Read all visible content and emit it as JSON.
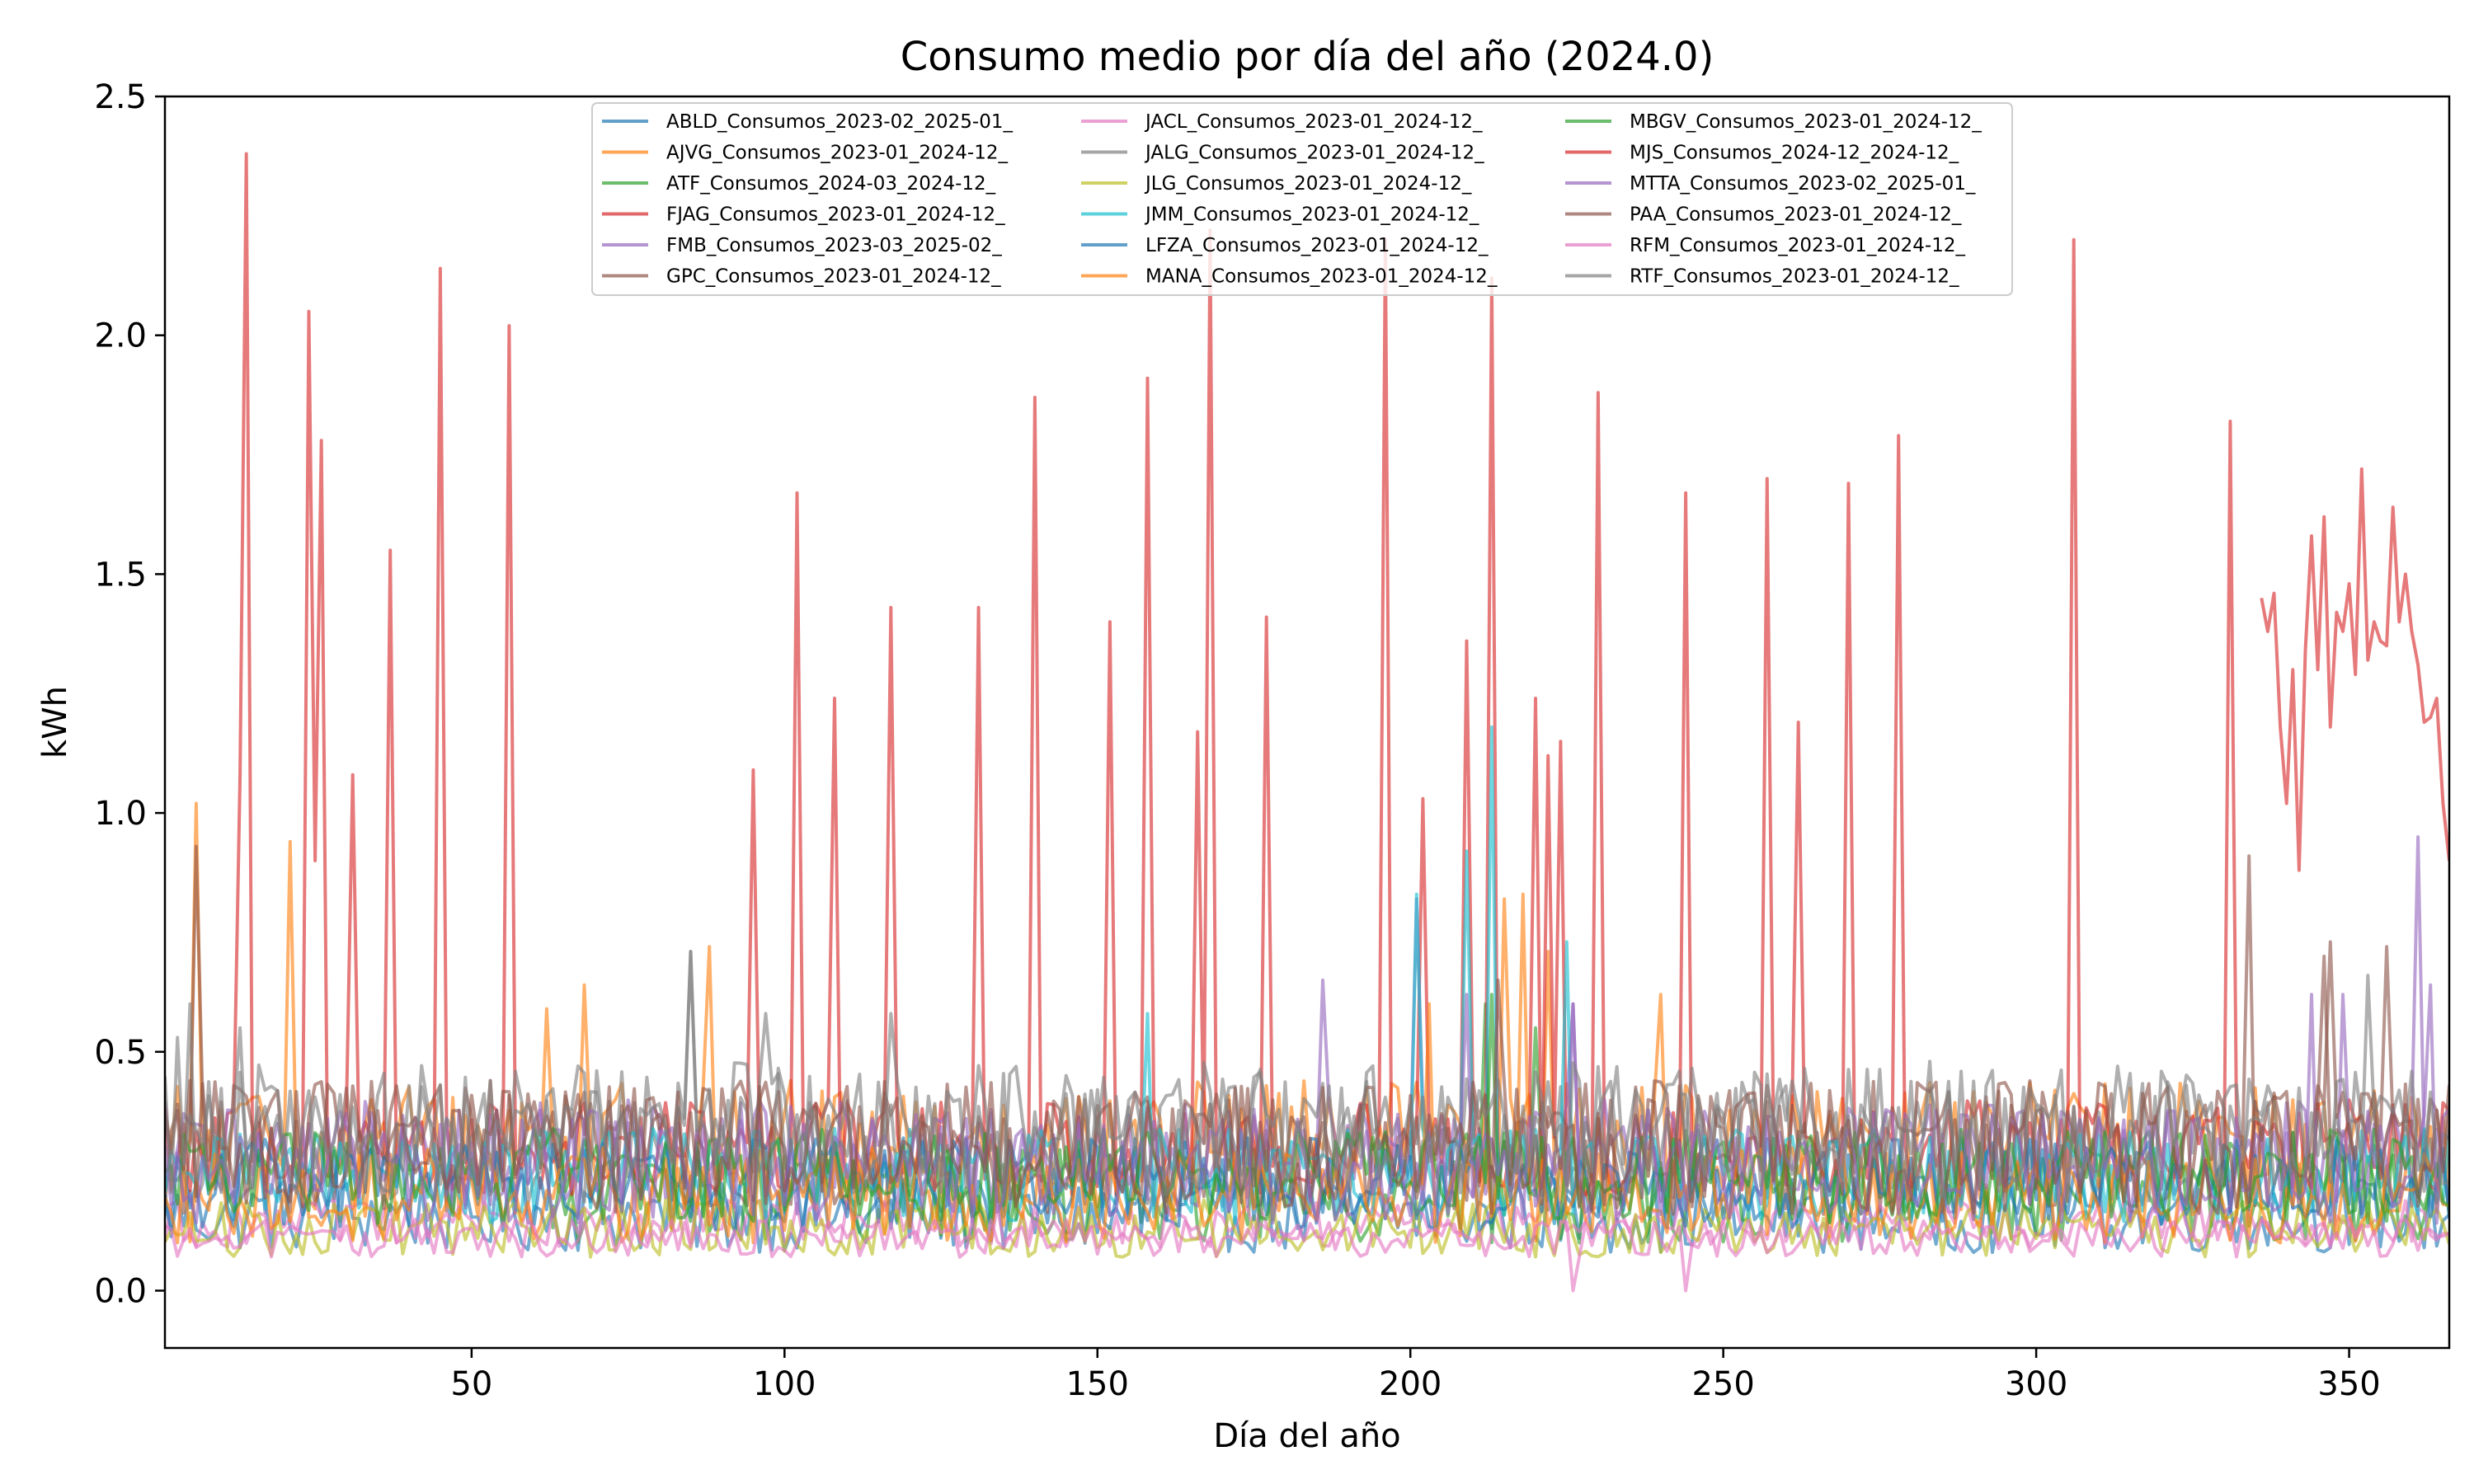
{
  "chart_data": {
    "type": "line",
    "title": "Consumo medio por día del año (2024.0)",
    "xlabel": "Día del año",
    "ylabel": "kWh",
    "xlim": [
      1,
      366
    ],
    "ylim": [
      -0.12,
      2.5
    ],
    "xticks": [
      50,
      100,
      150,
      200,
      250,
      300,
      350
    ],
    "yticks": [
      0.0,
      0.5,
      1.0,
      1.5,
      2.0,
      2.5
    ],
    "ytick_labels": [
      "0.0",
      "0.5",
      "1.0",
      "1.5",
      "2.0",
      "2.5"
    ],
    "grid": false,
    "legend_position": "upper center",
    "legend_columns": 3,
    "series": [
      {
        "name": "ABLD_Consumos_2023-02_2025-01_",
        "color": "#1f77b4",
        "start": 1,
        "end": 366,
        "base": 0.16,
        "amp": 0.08,
        "spikes": []
      },
      {
        "name": "AJVG_Consumos_2023-01_2024-12_",
        "color": "#ff7f0e",
        "start": 1,
        "end": 366,
        "base": 0.3,
        "amp": 0.14,
        "spikes": [
          [
            6,
            1.02
          ],
          [
            21,
            0.94
          ],
          [
            62,
            0.59
          ],
          [
            68,
            0.64
          ],
          [
            88,
            0.72
          ],
          [
            215,
            0.82
          ],
          [
            222,
            0.71
          ],
          [
            240,
            0.62
          ]
        ]
      },
      {
        "name": "ATF_Consumos_2024-03_2024-12_",
        "color": "#2ca02c",
        "start": 61,
        "end": 366,
        "base": 0.2,
        "amp": 0.1,
        "spikes": [
          [
            212,
            0.6
          ],
          [
            220,
            0.55
          ]
        ]
      },
      {
        "name": "FJAG_Consumos_2023-01_2024-12_",
        "color": "#d62728",
        "start": 1,
        "end": 366,
        "base": 0.3,
        "amp": 0.1,
        "spikes": [
          [
            13,
            1.08
          ],
          [
            14,
            2.38
          ],
          [
            24,
            2.05
          ],
          [
            25,
            0.9
          ],
          [
            26,
            1.78
          ],
          [
            31,
            1.08
          ],
          [
            37,
            1.55
          ],
          [
            45,
            2.14
          ],
          [
            56,
            2.02
          ],
          [
            95,
            1.09
          ],
          [
            102,
            1.67
          ],
          [
            108,
            1.24
          ],
          [
            117,
            1.43
          ],
          [
            131,
            1.43
          ],
          [
            140,
            1.87
          ],
          [
            152,
            1.4
          ],
          [
            158,
            1.91
          ],
          [
            166,
            1.17
          ],
          [
            168,
            2.22
          ],
          [
            177,
            1.41
          ],
          [
            196,
            2.2
          ],
          [
            202,
            1.03
          ],
          [
            209,
            1.36
          ],
          [
            213,
            2.12
          ],
          [
            220,
            1.24
          ],
          [
            222,
            1.12
          ],
          [
            224,
            1.15
          ],
          [
            230,
            1.88
          ],
          [
            244,
            1.67
          ],
          [
            257,
            1.7
          ],
          [
            262,
            1.19
          ],
          [
            270,
            1.69
          ],
          [
            278,
            1.79
          ],
          [
            306,
            2.2
          ],
          [
            331,
            1.82
          ]
        ]
      },
      {
        "name": "FMB_Consumos_2023-03_2025-02_",
        "color": "#9467bd",
        "start": 1,
        "end": 366,
        "base": 0.28,
        "amp": 0.12,
        "spikes": [
          [
            186,
            0.65
          ],
          [
            201,
            0.82
          ],
          [
            226,
            0.6
          ],
          [
            349,
            0.62
          ],
          [
            361,
            0.95
          ]
        ]
      },
      {
        "name": "GPC_Consumos_2023-01_2024-12_",
        "color": "#8c564b",
        "start": 1,
        "end": 366,
        "base": 0.3,
        "amp": 0.14,
        "spikes": [
          [
            6,
            0.93
          ],
          [
            334,
            0.91
          ],
          [
            346,
            0.7
          ],
          [
            356,
            0.72
          ]
        ]
      },
      {
        "name": "JACL_Consumos_2023-01_2024-12_",
        "color": "#e377c2",
        "start": 1,
        "end": 366,
        "base": 0.14,
        "amp": 0.05,
        "spikes": []
      },
      {
        "name": "JALG_Consumos_2023-01_2024-12_",
        "color": "#7f7f7f",
        "start": 1,
        "end": 366,
        "base": 0.32,
        "amp": 0.14,
        "spikes": [
          [
            5,
            0.6
          ],
          [
            85,
            0.71
          ],
          [
            97,
            0.58
          ]
        ]
      },
      {
        "name": "JLG_Consumos_2023-01_2024-12_",
        "color": "#bcbd22",
        "start": 1,
        "end": 366,
        "base": 0.13,
        "amp": 0.06,
        "spikes": []
      },
      {
        "name": "JMM_Consumos_2023-01_2024-12_",
        "color": "#17becf",
        "start": 1,
        "end": 366,
        "base": 0.24,
        "amp": 0.1,
        "spikes": [
          [
            158,
            0.58
          ],
          [
            201,
            0.83
          ],
          [
            209,
            0.92
          ],
          [
            213,
            1.18
          ],
          [
            225,
            0.73
          ]
        ]
      },
      {
        "name": "LFZA_Consumos_2023-01_2024-12_",
        "color": "#1f77b4",
        "start": 1,
        "end": 366,
        "base": 0.22,
        "amp": 0.1,
        "spikes": []
      },
      {
        "name": "MANA_Consumos_2023-01_2024-12_",
        "color": "#ff7f0e",
        "start": 1,
        "end": 366,
        "base": 0.2,
        "amp": 0.1,
        "spikes": [
          [
            203,
            0.6
          ],
          [
            218,
            0.83
          ]
        ]
      },
      {
        "name": "MBGV_Consumos_2023-01_2024-12_",
        "color": "#2ca02c",
        "start": 1,
        "end": 366,
        "base": 0.24,
        "amp": 0.1,
        "spikes": [
          [
            213,
            0.62
          ]
        ]
      },
      {
        "name": "MJS_Consumos_2024-12_2024-12_",
        "color": "#d62728",
        "start": 336,
        "end": 366,
        "values": [
          1.45,
          1.38,
          1.46,
          1.18,
          1.02,
          1.3,
          0.88,
          1.34,
          1.58,
          1.3,
          1.62,
          1.18,
          1.42,
          1.38,
          1.48,
          1.29,
          1.72,
          1.32,
          1.4,
          1.36,
          1.35,
          1.64,
          1.4,
          1.5,
          1.38,
          1.31,
          1.19,
          1.2,
          1.24,
          1.02,
          0.9
        ]
      },
      {
        "name": "MTTA_Consumos_2023-02_2025-01_",
        "color": "#9467bd",
        "start": 1,
        "end": 366,
        "base": 0.26,
        "amp": 0.12,
        "spikes": [
          [
            209,
            0.62
          ],
          [
            226,
            0.6
          ],
          [
            344,
            0.62
          ],
          [
            363,
            0.64
          ]
        ]
      },
      {
        "name": "PAA_Consumos_2023-01_2024-12_",
        "color": "#8c564b",
        "start": 1,
        "end": 366,
        "base": 0.3,
        "amp": 0.14,
        "spikes": [
          [
            214,
            0.65
          ],
          [
            347,
            0.73
          ]
        ]
      },
      {
        "name": "RFM_Consumos_2023-01_2024-12_",
        "color": "#e377c2",
        "start": 1,
        "end": 366,
        "base": 0.11,
        "amp": 0.04,
        "spikes": [
          [
            226,
            0.0
          ],
          [
            244,
            0.0
          ]
        ]
      },
      {
        "name": "RTF_Consumos_2023-01_2024-12_",
        "color": "#7f7f7f",
        "start": 1,
        "end": 366,
        "base": 0.34,
        "amp": 0.14,
        "spikes": [
          [
            3,
            0.53
          ],
          [
            13,
            0.55
          ],
          [
            85,
            0.71
          ],
          [
            117,
            0.58
          ],
          [
            353,
            0.66
          ]
        ]
      }
    ]
  }
}
